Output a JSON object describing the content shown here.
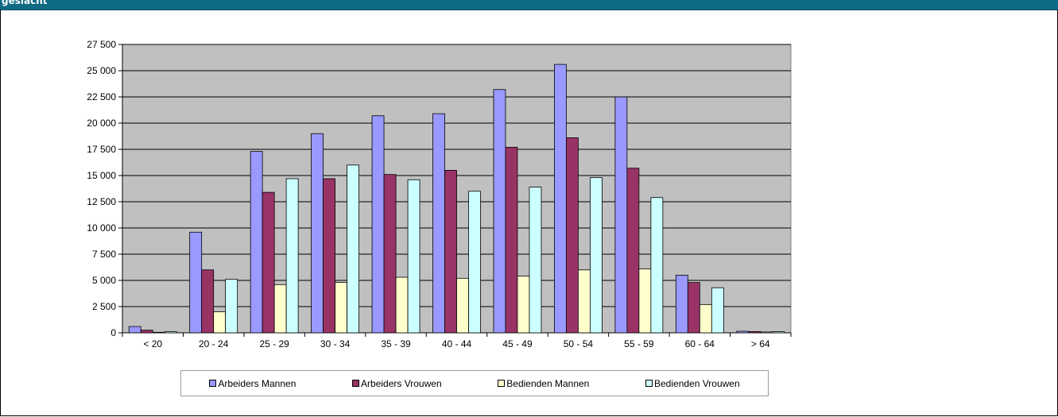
{
  "header": {
    "title": "geslacht"
  },
  "chart_data": {
    "type": "bar",
    "categories": [
      "< 20",
      "20 - 24",
      "25 - 29",
      "30 - 34",
      "35 - 39",
      "40 - 44",
      "45 - 49",
      "50 - 54",
      "55 - 59",
      "60 - 64",
      "> 64"
    ],
    "series": [
      {
        "name": "Arbeiders Mannen",
        "color": "#9999ff",
        "values": [
          600,
          9600,
          17300,
          19000,
          20700,
          20900,
          23200,
          25600,
          22500,
          5500,
          150
        ]
      },
      {
        "name": "Arbeiders Vrouwen",
        "color": "#993366",
        "values": [
          250,
          6000,
          13400,
          14700,
          15100,
          15500,
          17700,
          18600,
          15700,
          4800,
          120
        ]
      },
      {
        "name": "Bedienden Mannen",
        "color": "#ffffcc",
        "values": [
          50,
          2000,
          4600,
          4800,
          5300,
          5200,
          5400,
          6000,
          6100,
          2700,
          80
        ]
      },
      {
        "name": "Bedienden Vrouwen",
        "color": "#ccffff",
        "values": [
          120,
          5100,
          14700,
          16000,
          14600,
          13500,
          13900,
          14800,
          12900,
          4300,
          110
        ]
      }
    ],
    "yticks": [
      "0",
      "2 500",
      "5 000",
      "7 500",
      "10 000",
      "12 500",
      "15 000",
      "17 500",
      "20 000",
      "22 500",
      "25 000",
      "27 500"
    ],
    "ylim": [
      0,
      27500
    ],
    "title": "",
    "xlabel": "",
    "ylabel": "",
    "plot_background": "#c0c0c0",
    "grid": "horizontal",
    "legend_position": "bottom"
  }
}
